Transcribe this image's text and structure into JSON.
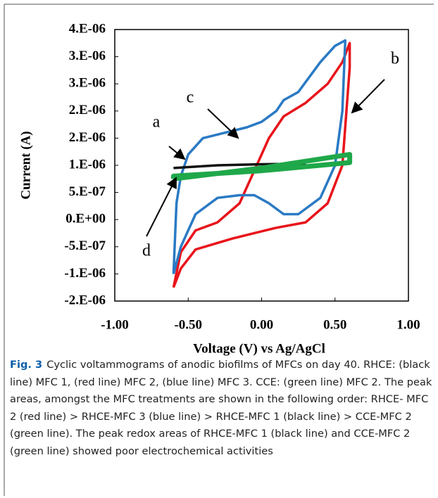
{
  "chart_data": {
    "type": "line",
    "xlabel": "Voltage (V) vs Ag/AgCl",
    "ylabel": "Current (A)",
    "xlim": [
      -1,
      1
    ],
    "xticks": [
      {
        "value": -1,
        "label": "-1.00"
      },
      {
        "value": -0.5,
        "label": "-0.50"
      },
      {
        "value": 0,
        "label": "0.00"
      },
      {
        "value": 0.5,
        "label": "0.50"
      },
      {
        "value": 1,
        "label": "1.00"
      }
    ],
    "ylim": [
      -1.5e-06,
      3.5e-06
    ],
    "yticks": [
      {
        "value": 3.5e-06,
        "label": "4.E-06"
      },
      {
        "value": 3e-06,
        "label": "3.E-06"
      },
      {
        "value": 2.5e-06,
        "label": "3.E-06"
      },
      {
        "value": 2e-06,
        "label": "2.E-06"
      },
      {
        "value": 1.5e-06,
        "label": "2.E-06"
      },
      {
        "value": 1e-06,
        "label": "1.E-06"
      },
      {
        "value": 5e-07,
        "label": "5.E-07"
      },
      {
        "value": 0,
        "label": "0.E+00"
      },
      {
        "value": -5e-07,
        "label": "-5.E-07"
      },
      {
        "value": -1e-06,
        "label": "-1.E-06"
      },
      {
        "value": -1.5e-06,
        "label": "-2.E-06"
      }
    ],
    "series": [
      {
        "color": "#e8141b",
        "x": [
          -0.6,
          -0.55,
          -0.45,
          -0.3,
          -0.15,
          -0.05,
          0.05,
          0.15,
          0.3,
          0.45,
          0.55,
          0.6,
          0.6,
          0.55,
          0.45,
          0.3,
          0.1,
          -0.2,
          -0.45,
          -0.55,
          -0.6
        ],
        "values": [
          -1.25e-06,
          -6e-07,
          -2e-07,
          -5e-08,
          3e-07,
          9e-07,
          1.5e-06,
          1.9e-06,
          2.15e-06,
          2.5e-06,
          2.9e-06,
          3.25e-06,
          2.8e-06,
          1e-06,
          3e-07,
          -5e-08,
          -1.5e-07,
          -3.5e-07,
          -5.5e-07,
          -9e-07,
          -1.25e-06
        ]
      },
      {
        "color": "#2a7ac4",
        "x": [
          -0.6,
          -0.58,
          -0.55,
          -0.5,
          -0.4,
          -0.25,
          -0.1,
          0,
          0.1,
          0.15,
          0.25,
          0.4,
          0.5,
          0.57,
          0.55,
          0.5,
          0.4,
          0.25,
          0.15,
          0.05,
          -0.05,
          -0.15,
          -0.3,
          -0.45,
          -0.55,
          -0.6
        ],
        "values": [
          -1e-06,
          3e-07,
          8e-07,
          1.2e-06,
          1.5e-06,
          1.6e-06,
          1.7e-06,
          1.8e-06,
          2e-06,
          2.2e-06,
          2.35e-06,
          2.9e-06,
          3.2e-06,
          3.3e-06,
          2e-06,
          1e-06,
          4e-07,
          1e-07,
          1e-07,
          3e-07,
          4.5e-07,
          4.5e-07,
          4e-07,
          1e-07,
          -5e-07,
          -1e-06
        ]
      },
      {
        "color": "#111111",
        "x": [
          -0.6,
          -0.3,
          0,
          0.3
        ],
        "values": [
          9.5e-07,
          1e-06,
          1.02e-06,
          1.03e-06
        ]
      },
      {
        "color": "#1fa84a",
        "x": [
          -0.6,
          0,
          0.6,
          0.6,
          0,
          -0.6,
          -0.6
        ],
        "values": [
          7.5e-07,
          9.5e-07,
          1.2e-06,
          1.05e-06,
          9e-07,
          8e-07,
          7.5e-07
        ]
      }
    ],
    "annotations": [
      "a",
      "b",
      "c",
      "d"
    ]
  },
  "caption": {
    "label": "Fig. 3",
    "text": "Cyclic voltammograms of anodic biofilms of MFCs on day 40. RHCE: (black line) MFC 1, (red line) MFC 2, (blue line) MFC 3. CCE: (green line) MFC 2. The peak areas, amongst the MFC treatments are shown in the following order: RHCE- MFC 2 (red line) > RHCE-MFC 3 (blue line) > RHCE-MFC 1 (black line) > CCE-MFC 2 (green line). The peak redox areas of RHCE-MFC 1 (black line) and CCE-MFC 2 (green line) showed poor electrochemical activities"
  }
}
